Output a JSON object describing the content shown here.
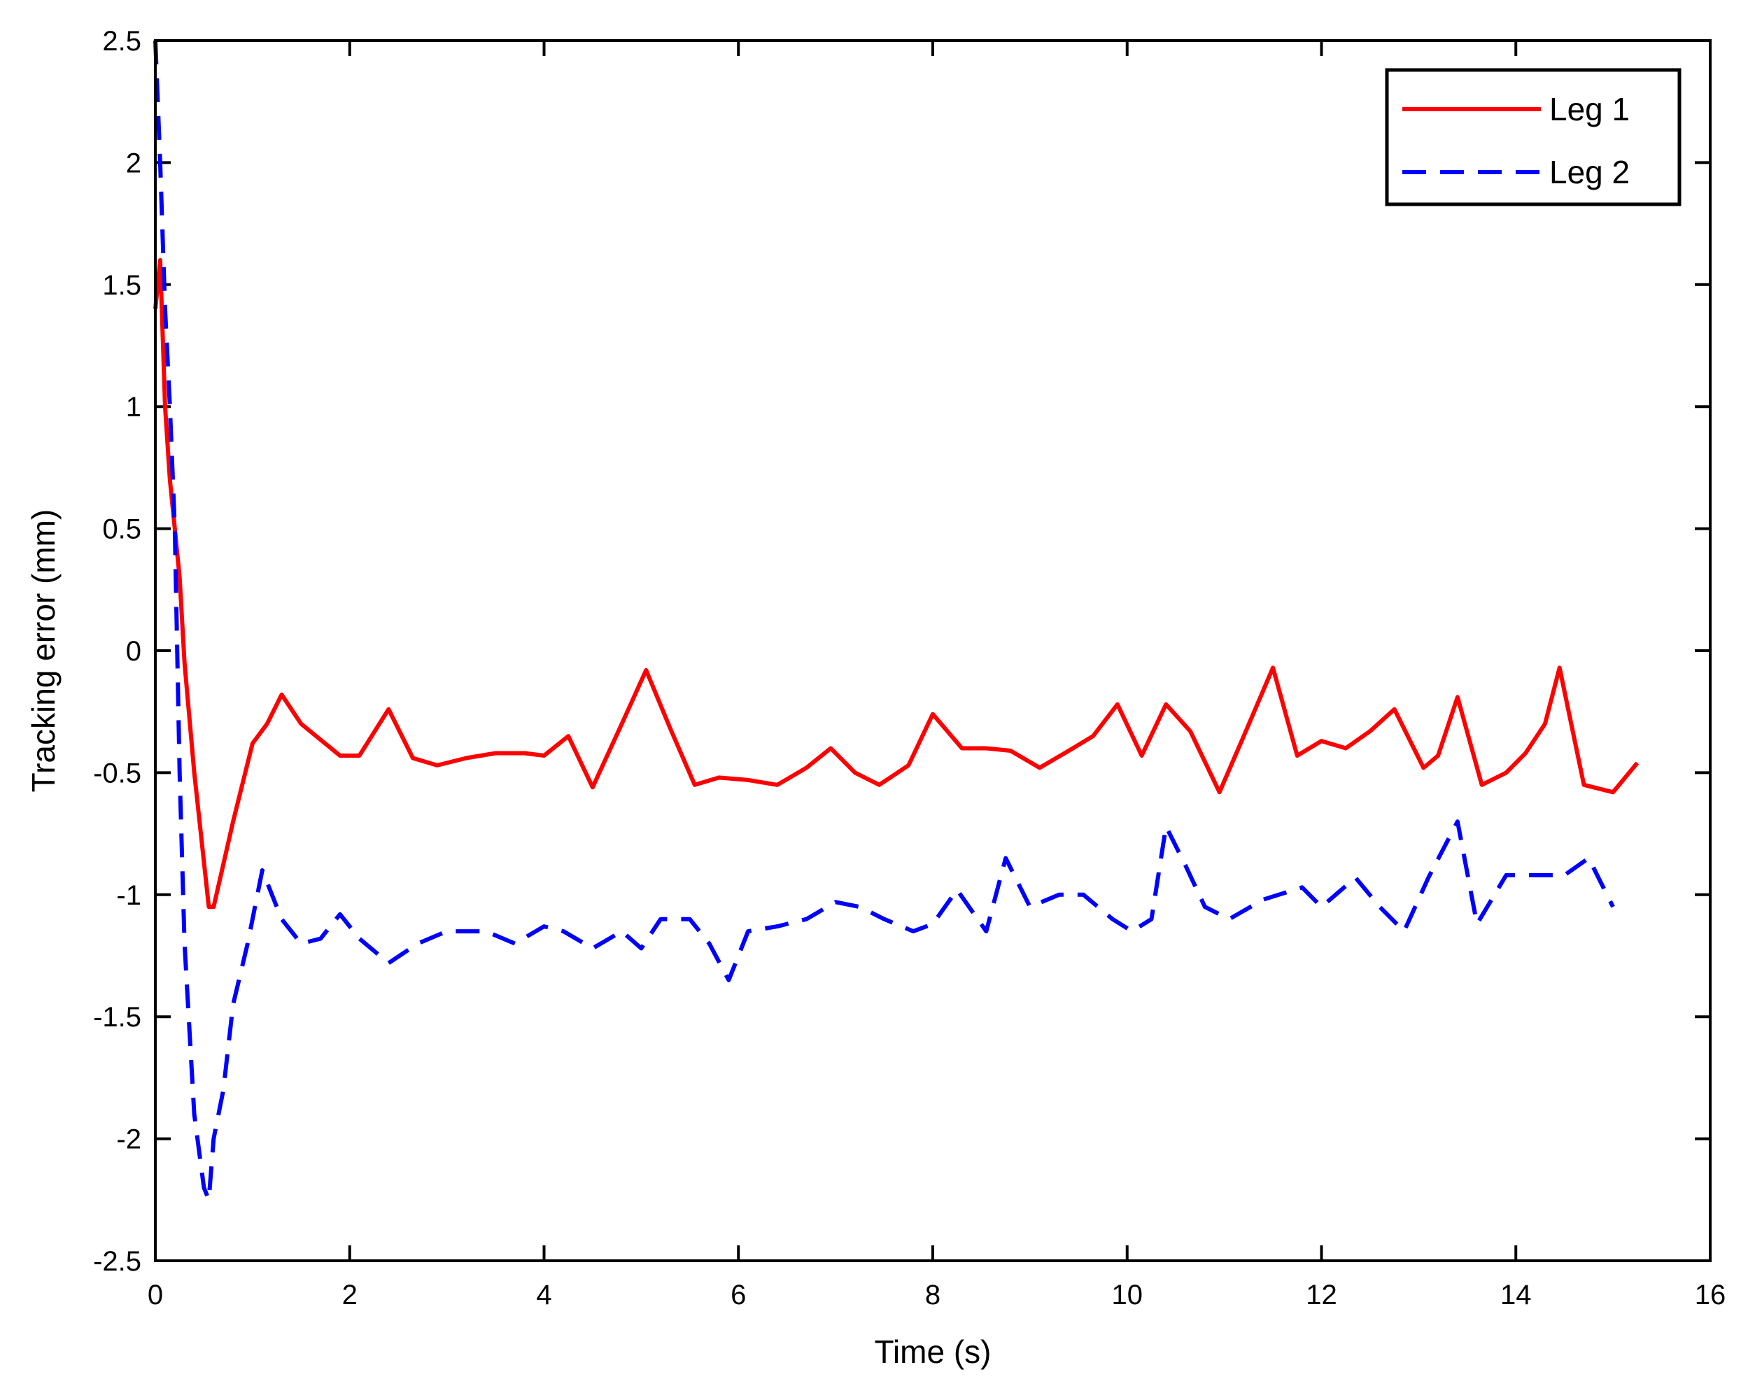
{
  "chart_data": {
    "type": "line",
    "title": "",
    "xlabel": "Time (s)",
    "ylabel": "Tracking error (mm)",
    "xlim": [
      0,
      16
    ],
    "ylim": [
      -2.5,
      2.5
    ],
    "xticks": [
      0,
      2,
      4,
      6,
      8,
      10,
      12,
      14,
      16
    ],
    "yticks": [
      2.5,
      2,
      1.5,
      1,
      0.5,
      0,
      -0.5,
      -1,
      -1.5,
      -2,
      -2.5
    ],
    "xtick_labels": [
      "0",
      "2",
      "4",
      "6",
      "8",
      "10",
      "12",
      "14",
      "16"
    ],
    "ytick_labels": [
      "2.5",
      "2",
      "1.5",
      "1",
      "0.5",
      "0",
      "-0.5",
      "-1",
      "-1.5",
      "-2",
      "-2.5"
    ],
    "grid": false,
    "legend_position": "top-right",
    "series": [
      {
        "name": "Leg 1",
        "color": "#ff0000",
        "style": "solid",
        "x": [
          0,
          0.05,
          0.1,
          0.15,
          0.2,
          0.25,
          0.3,
          0.4,
          0.55,
          0.6,
          0.8,
          1.0,
          1.15,
          1.3,
          1.5,
          1.9,
          2.1,
          2.4,
          2.65,
          2.9,
          3.2,
          3.5,
          3.8,
          4.0,
          4.25,
          4.5,
          4.8,
          5.05,
          5.3,
          5.55,
          5.8,
          6.1,
          6.4,
          6.7,
          6.95,
          7.2,
          7.45,
          7.75,
          8.0,
          8.3,
          8.55,
          8.8,
          9.1,
          9.4,
          9.65,
          9.9,
          10.15,
          10.4,
          10.65,
          10.95,
          11.2,
          11.5,
          11.75,
          12.0,
          12.25,
          12.5,
          12.75,
          13.05,
          13.2,
          13.4,
          13.65,
          13.9,
          14.1,
          14.3,
          14.45,
          14.7,
          15.0,
          15.25
        ],
        "y": [
          1.4,
          1.6,
          1.0,
          0.7,
          0.5,
          0.3,
          -0.05,
          -0.5,
          -1.05,
          -1.05,
          -0.7,
          -0.38,
          -0.3,
          -0.18,
          -0.3,
          -0.43,
          -0.43,
          -0.24,
          -0.44,
          -0.47,
          -0.44,
          -0.42,
          -0.42,
          -0.43,
          -0.35,
          -0.56,
          -0.3,
          -0.08,
          -0.32,
          -0.55,
          -0.52,
          -0.53,
          -0.55,
          -0.48,
          -0.4,
          -0.5,
          -0.55,
          -0.47,
          -0.26,
          -0.4,
          -0.4,
          -0.41,
          -0.48,
          -0.41,
          -0.35,
          -0.22,
          -0.43,
          -0.22,
          -0.33,
          -0.58,
          -0.35,
          -0.07,
          -0.43,
          -0.37,
          -0.4,
          -0.33,
          -0.24,
          -0.48,
          -0.43,
          -0.19,
          -0.55,
          -0.5,
          -0.42,
          -0.3,
          -0.07,
          -0.55,
          -0.58,
          -0.46
        ]
      },
      {
        "name": "Leg 2",
        "color": "#0000ff",
        "style": "dashed",
        "x": [
          0,
          0.05,
          0.1,
          0.15,
          0.2,
          0.25,
          0.3,
          0.4,
          0.5,
          0.55,
          0.6,
          0.7,
          0.8,
          0.95,
          1.1,
          1.3,
          1.5,
          1.7,
          1.9,
          2.1,
          2.4,
          2.7,
          3.0,
          3.4,
          3.7,
          4.0,
          4.2,
          4.5,
          4.8,
          5.0,
          5.2,
          5.5,
          5.7,
          5.9,
          6.1,
          6.4,
          6.7,
          7.0,
          7.25,
          7.5,
          7.8,
          8.0,
          8.25,
          8.55,
          8.75,
          9.0,
          9.3,
          9.55,
          9.85,
          10.05,
          10.25,
          10.4,
          10.6,
          10.8,
          11.05,
          11.4,
          11.8,
          12.0,
          12.35,
          12.6,
          12.85,
          13.1,
          13.4,
          13.6,
          13.9,
          14.2,
          14.5,
          14.75,
          15.0
        ],
        "y": [
          2.5,
          2.0,
          1.4,
          1.0,
          0.5,
          -0.5,
          -1.2,
          -1.9,
          -2.2,
          -2.25,
          -2.0,
          -1.8,
          -1.45,
          -1.2,
          -0.9,
          -1.1,
          -1.2,
          -1.18,
          -1.08,
          -1.18,
          -1.28,
          -1.2,
          -1.15,
          -1.15,
          -1.2,
          -1.13,
          -1.15,
          -1.22,
          -1.15,
          -1.22,
          -1.1,
          -1.1,
          -1.2,
          -1.35,
          -1.15,
          -1.13,
          -1.1,
          -1.03,
          -1.05,
          -1.1,
          -1.15,
          -1.12,
          -0.98,
          -1.15,
          -0.85,
          -1.05,
          -1.0,
          -1.0,
          -1.1,
          -1.15,
          -1.1,
          -0.72,
          -0.88,
          -1.05,
          -1.1,
          -1.02,
          -0.97,
          -1.05,
          -0.93,
          -1.05,
          -1.15,
          -0.93,
          -0.7,
          -1.12,
          -0.92,
          -0.92,
          -0.92,
          -0.85,
          -1.05
        ]
      }
    ]
  }
}
